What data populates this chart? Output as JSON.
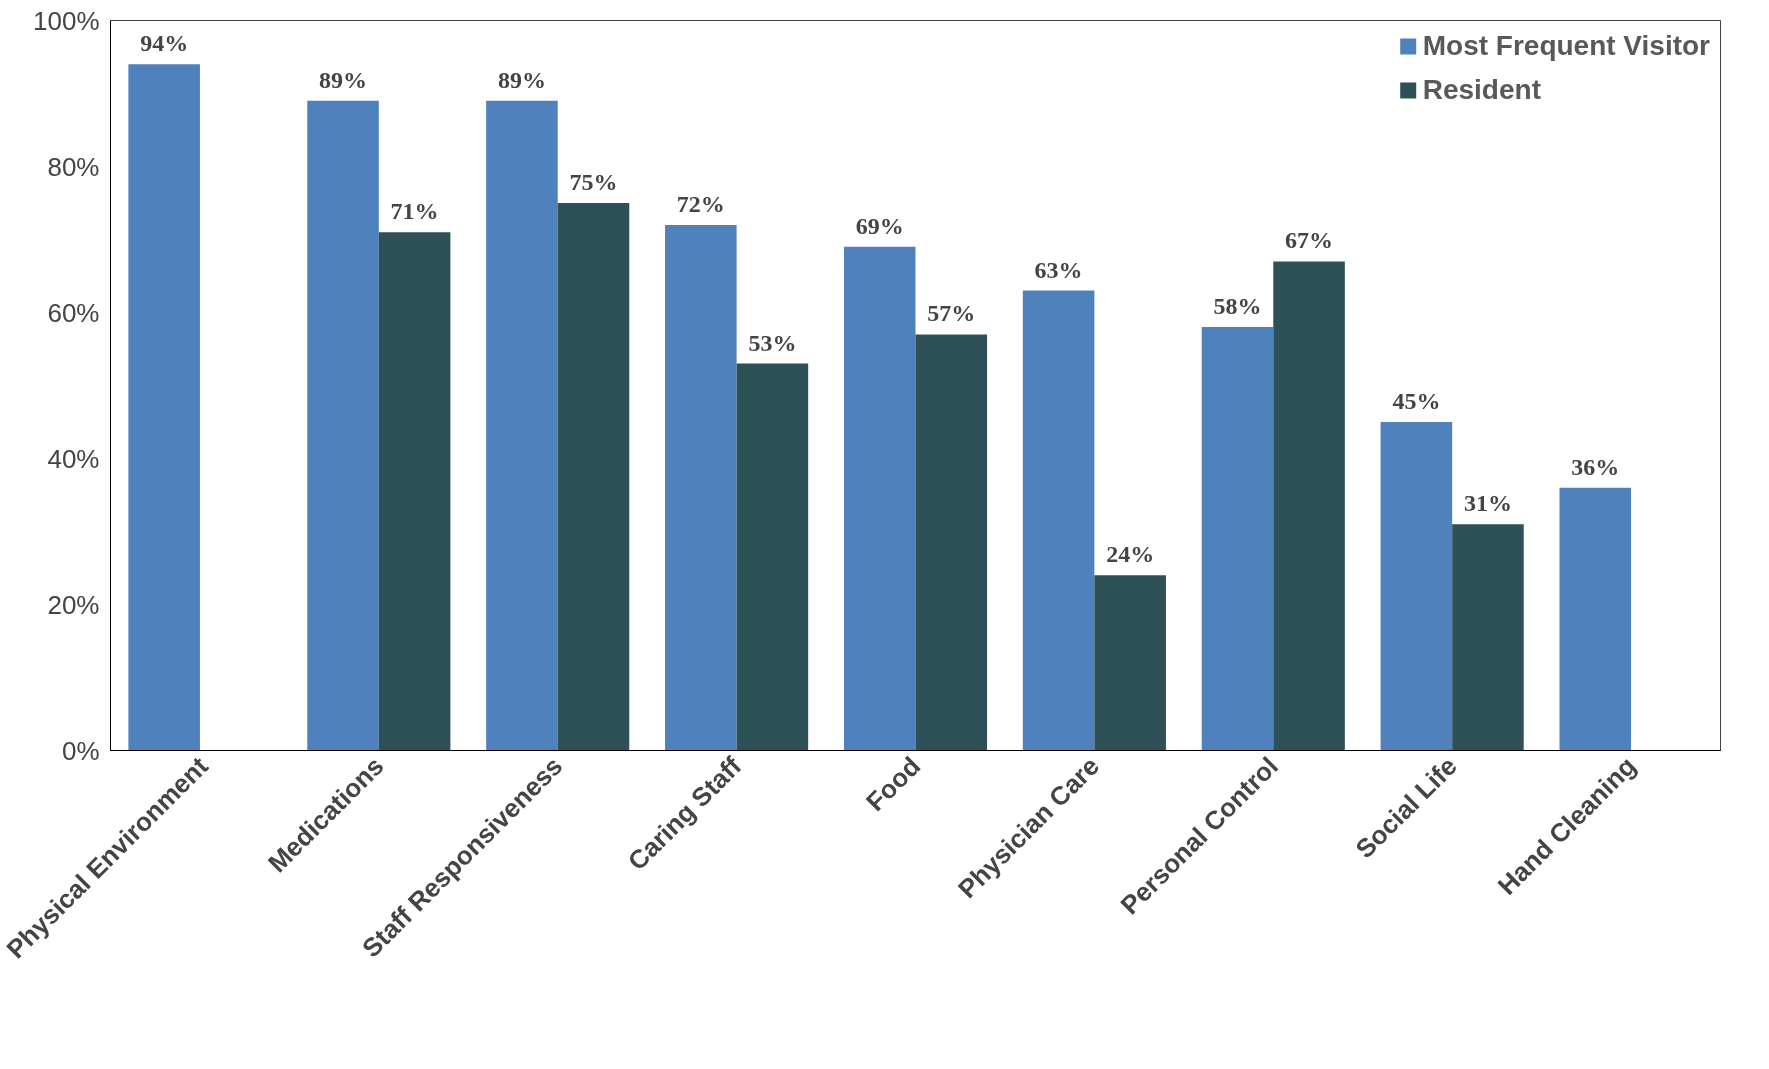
{
  "chart_data": {
    "type": "bar",
    "categories": [
      "Physical Environment",
      "Medications",
      "Staff Responsiveness",
      "Caring Staff",
      "Food",
      "Physician Care",
      "Personal Control",
      "Social Life",
      "Hand Cleaning"
    ],
    "series": [
      {
        "name": "Most Frequent Visitor",
        "color": "#4f81bd",
        "values": [
          94,
          89,
          89,
          72,
          69,
          63,
          58,
          45,
          36
        ],
        "value_labels": [
          "94%",
          "89%",
          "89%",
          "72%",
          "69%",
          "63%",
          "58%",
          "45%",
          "36%"
        ]
      },
      {
        "name": "Resident",
        "color": "#2e5057",
        "values": [
          null,
          71,
          75,
          53,
          57,
          24,
          67,
          31,
          null
        ],
        "value_labels": [
          null,
          "71%",
          "75%",
          "53%",
          "57%",
          "24%",
          "67%",
          "31%",
          null
        ]
      }
    ],
    "ylim": [
      0,
      100
    ],
    "yticks": [
      {
        "value": 0,
        "label": "0%"
      },
      {
        "value": 20,
        "label": "20%"
      },
      {
        "value": 40,
        "label": "40%"
      },
      {
        "value": 60,
        "label": "60%"
      },
      {
        "value": 80,
        "label": "80%"
      },
      {
        "value": 100,
        "label": "100%"
      }
    ],
    "grid": false,
    "legend": "top right"
  }
}
